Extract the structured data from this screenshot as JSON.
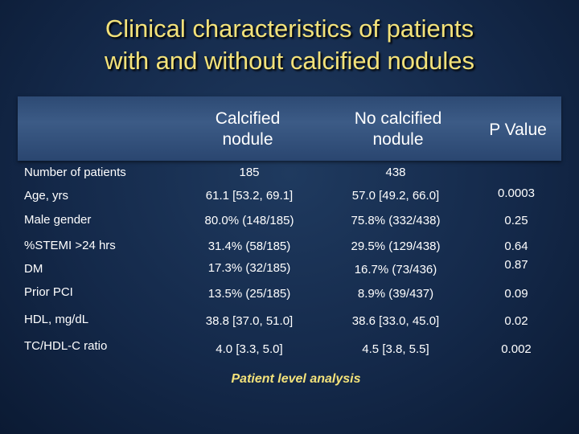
{
  "title": {
    "line1": "Clinical characteristics of patients",
    "line2": "with and without calcified nodules"
  },
  "columns": {
    "calcified_line1": "Calcified",
    "calcified_line2": "nodule",
    "no_calcified_line1": "No calcified",
    "no_calcified_line2": "nodule",
    "p_value": "P Value"
  },
  "rows": [
    {
      "label": "Number of patients",
      "calcified": "185",
      "no_calcified": "438",
      "p": ""
    },
    {
      "label": "Age, yrs",
      "calcified": "61.1 [53.2, 69.1]",
      "no_calcified": "57.0 [49.2, 66.0]",
      "p": "0.0003"
    },
    {
      "label": "Male gender",
      "calcified": "80.0% (148/185)",
      "no_calcified": "75.8% (332/438)",
      "p": "0.25"
    },
    {
      "label": "%STEMI >24 hrs",
      "calcified": "31.4% (58/185)",
      "no_calcified": "29.5% (129/438)",
      "p": "0.64"
    },
    {
      "label": "DM",
      "calcified": "17.3% (32/185)",
      "no_calcified": "16.7% (73/436)",
      "p": "0.87"
    },
    {
      "label": "Prior PCI",
      "calcified": "13.5% (25/185)",
      "no_calcified": "8.9% (39/437)",
      "p": "0.09"
    },
    {
      "label": "HDL, mg/dL",
      "calcified": "38.8 [37.0, 51.0]",
      "no_calcified": "38.6 [33.0, 45.0]",
      "p": "0.02"
    },
    {
      "label": "TC/HDL-C ratio",
      "calcified": "4.0 [3.3, 5.0]",
      "no_calcified": "4.5 [3.8, 5.5]",
      "p": "0.002"
    }
  ],
  "footer": "Patient level analysis"
}
